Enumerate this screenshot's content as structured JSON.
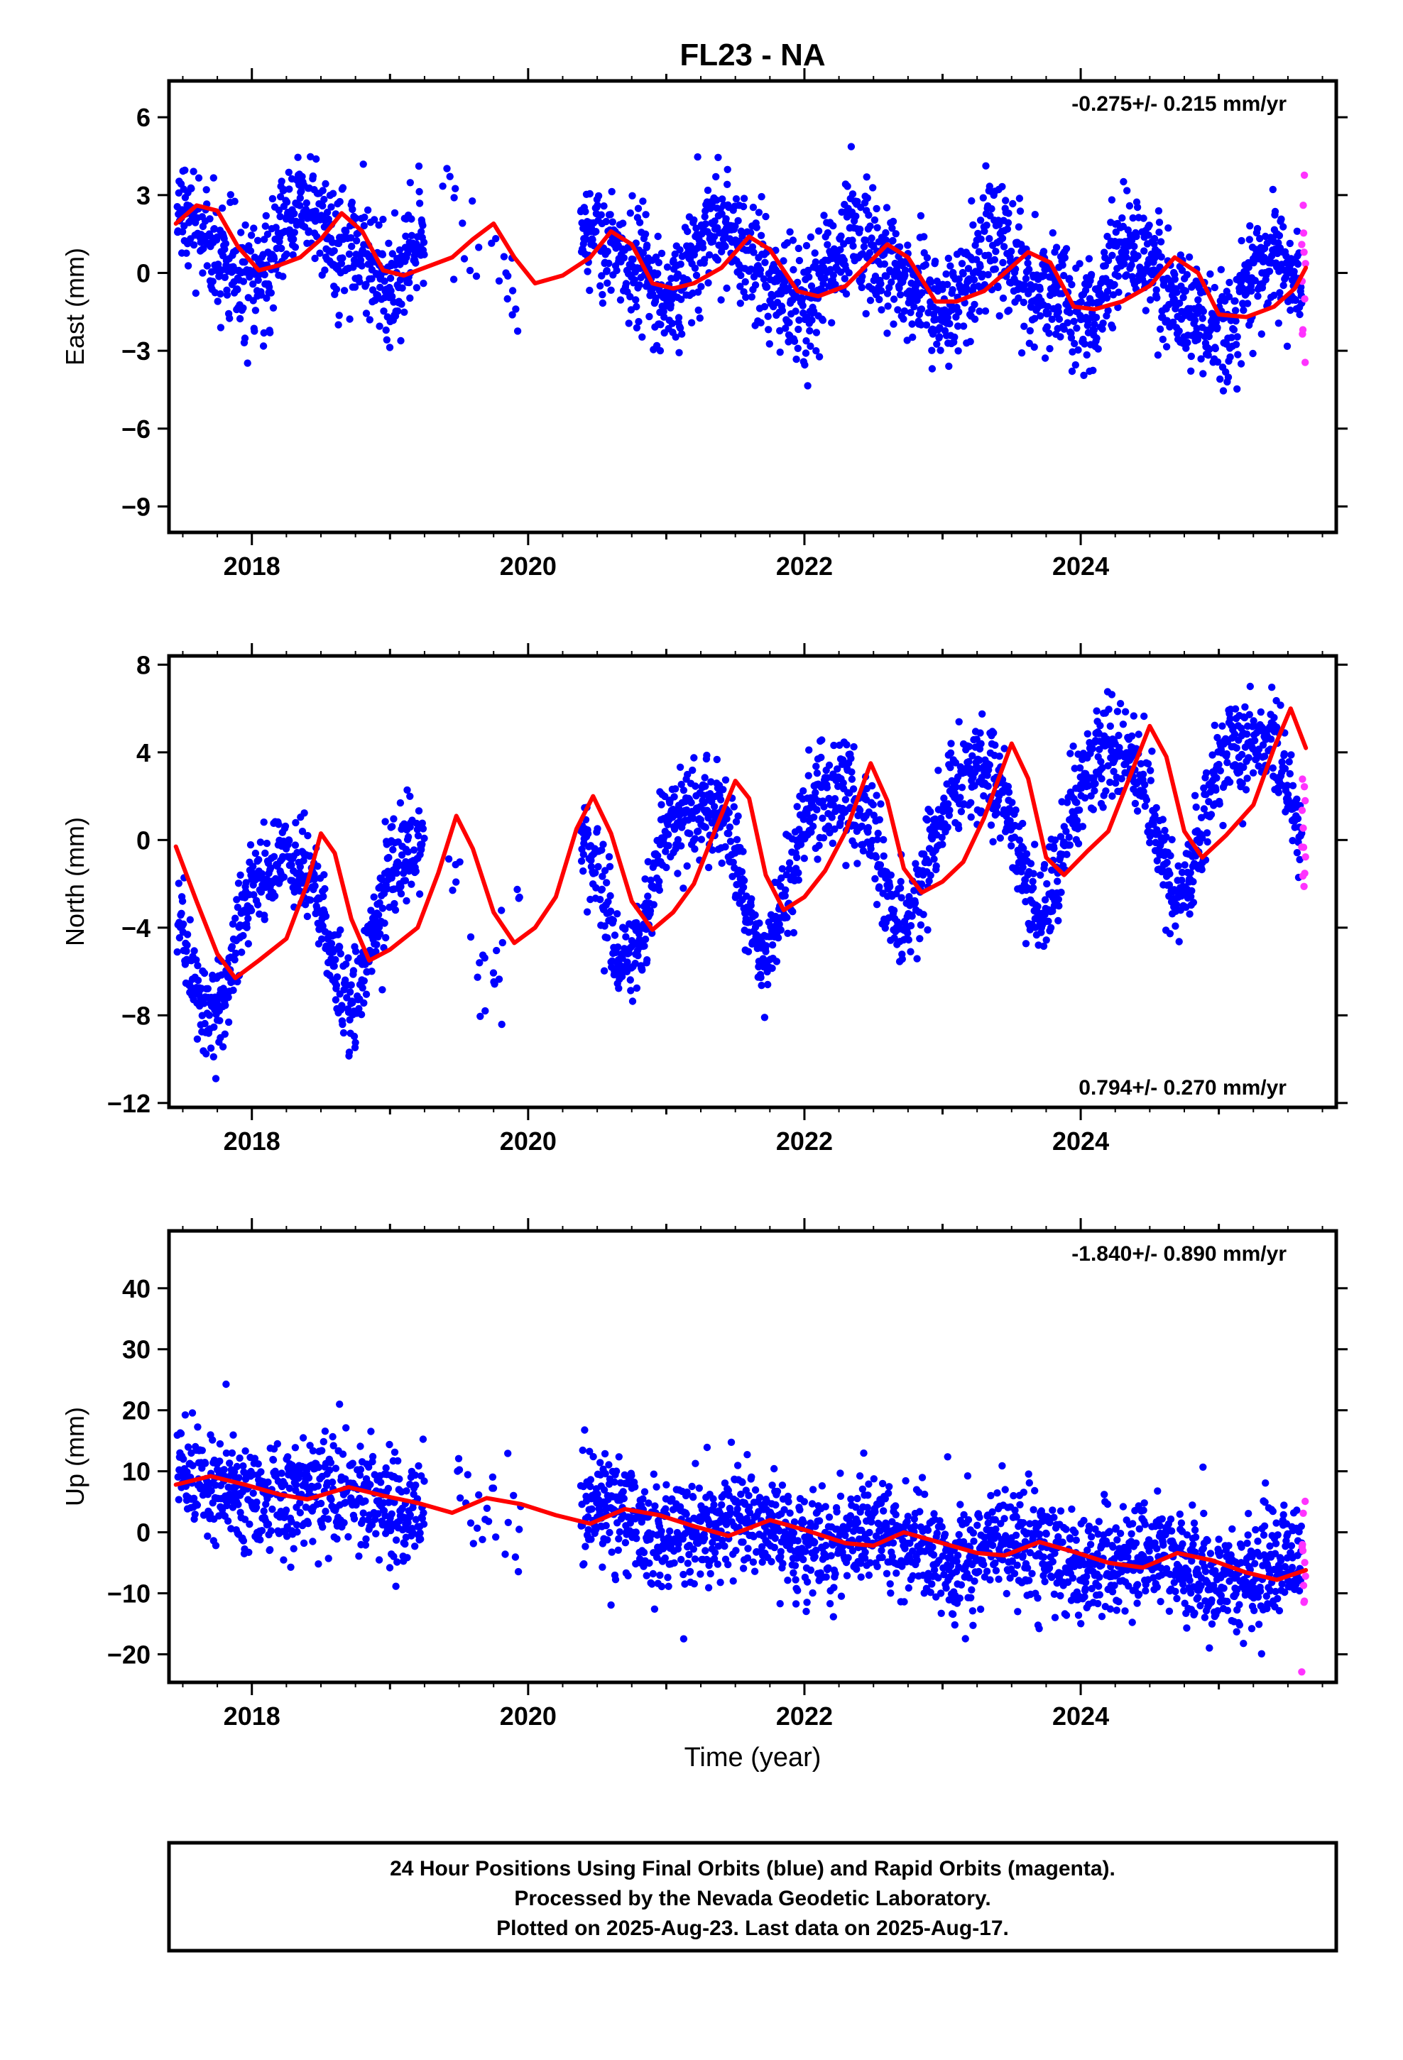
{
  "chart_data": {
    "type": "scatter",
    "title": "FL23 - NA",
    "xlabel": "Time (year)",
    "xlim": [
      2017.4,
      2025.85
    ],
    "x_ticks": [
      2018,
      2020,
      2022,
      2024
    ],
    "x_tick_labels": [
      "2018",
      "2020",
      "2022",
      "2024"
    ],
    "legend": "",
    "grid": false,
    "colors": {
      "final": "#0000ff",
      "rapid": "#ff33ff",
      "model": "#ff0000"
    },
    "footer_lines": [
      "24 Hour Positions Using Final Orbits (blue) and Rapid Orbits (magenta).",
      "Processed by the Nevada Geodetic Laboratory.",
      "Plotted on 2025-Aug-23. Last data on 2025-Aug-17."
    ],
    "panels": [
      {
        "ylabel": "East (mm)",
        "ylim": [
          -10,
          7.4
        ],
        "y_ticks": [
          6,
          3,
          0,
          -3,
          -6,
          -9
        ],
        "y_tick_labels": [
          "6",
          "3",
          "0",
          "−3",
          "−6",
          "−9"
        ],
        "rate_text": "-0.275+/- 0.215 mm/yr",
        "rate_position": "top-right",
        "trend": {
          "t0": 2021.5,
          "a": 0.3,
          "b": -0.275
        },
        "seasonal": {
          "annual_amp": 1.3,
          "annual_phase": 5.2,
          "semiannual_amp": 0.4,
          "semiannual_phase": 3.8
        },
        "scatter_sd": 1.1,
        "model_curve": [
          [
            2017.45,
            1.9
          ],
          [
            2017.6,
            2.6
          ],
          [
            2017.75,
            2.4
          ],
          [
            2017.9,
            1.0
          ],
          [
            2018.05,
            0.1
          ],
          [
            2018.2,
            0.3
          ],
          [
            2018.35,
            0.6
          ],
          [
            2018.5,
            1.3
          ],
          [
            2018.65,
            2.3
          ],
          [
            2018.8,
            1.6
          ],
          [
            2018.95,
            0.1
          ],
          [
            2019.1,
            -0.1
          ],
          [
            2019.25,
            0.2
          ],
          [
            2019.45,
            0.6
          ],
          [
            2019.6,
            1.3
          ],
          [
            2019.75,
            1.9
          ],
          [
            2019.9,
            0.6
          ],
          [
            2020.05,
            -0.4
          ],
          [
            2020.25,
            -0.1
          ],
          [
            2020.45,
            0.6
          ],
          [
            2020.6,
            1.6
          ],
          [
            2020.75,
            1.1
          ],
          [
            2020.9,
            -0.4
          ],
          [
            2021.05,
            -0.6
          ],
          [
            2021.2,
            -0.4
          ],
          [
            2021.4,
            0.2
          ],
          [
            2021.6,
            1.4
          ],
          [
            2021.75,
            0.9
          ],
          [
            2021.95,
            -0.7
          ],
          [
            2022.1,
            -0.9
          ],
          [
            2022.3,
            -0.5
          ],
          [
            2022.45,
            0.3
          ],
          [
            2022.6,
            1.1
          ],
          [
            2022.75,
            0.6
          ],
          [
            2022.95,
            -1.1
          ],
          [
            2023.1,
            -1.1
          ],
          [
            2023.3,
            -0.7
          ],
          [
            2023.45,
            0.0
          ],
          [
            2023.62,
            0.8
          ],
          [
            2023.78,
            0.4
          ],
          [
            2023.95,
            -1.3
          ],
          [
            2024.1,
            -1.4
          ],
          [
            2024.3,
            -1.1
          ],
          [
            2024.5,
            -0.5
          ],
          [
            2024.68,
            0.6
          ],
          [
            2024.85,
            0.0
          ],
          [
            2025.0,
            -1.6
          ],
          [
            2025.2,
            -1.7
          ],
          [
            2025.4,
            -1.3
          ],
          [
            2025.55,
            -0.6
          ],
          [
            2025.63,
            0.2
          ]
        ]
      },
      {
        "ylabel": "North (mm)",
        "ylim": [
          -12.2,
          8.4
        ],
        "y_ticks": [
          8,
          4,
          0,
          -4,
          -8,
          -12
        ],
        "y_tick_labels": [
          "8",
          "4",
          "0",
          "−4",
          "−8",
          "−12"
        ],
        "rate_text": "0.794+/- 0.270 mm/yr",
        "rate_position": "bottom-right",
        "trend": {
          "t0": 2021.5,
          "a": -0.9,
          "b": 0.794
        },
        "seasonal": {
          "annual_amp": 3.3,
          "annual_phase": 0.2,
          "semiannual_amp": 0.8,
          "semiannual_phase": 2.0
        },
        "scatter_sd": 1.1,
        "model_curve": [
          [
            2017.45,
            -0.3
          ],
          [
            2017.6,
            -2.8
          ],
          [
            2017.75,
            -5.2
          ],
          [
            2017.88,
            -6.3
          ],
          [
            2018.05,
            -5.5
          ],
          [
            2018.25,
            -4.5
          ],
          [
            2018.4,
            -2.0
          ],
          [
            2018.5,
            0.3
          ],
          [
            2018.6,
            -0.6
          ],
          [
            2018.72,
            -3.6
          ],
          [
            2018.85,
            -5.5
          ],
          [
            2019.0,
            -5.0
          ],
          [
            2019.2,
            -4.0
          ],
          [
            2019.35,
            -1.5
          ],
          [
            2019.48,
            1.1
          ],
          [
            2019.6,
            -0.4
          ],
          [
            2019.75,
            -3.3
          ],
          [
            2019.9,
            -4.7
          ],
          [
            2020.05,
            -4.0
          ],
          [
            2020.2,
            -2.6
          ],
          [
            2020.35,
            0.5
          ],
          [
            2020.47,
            2.0
          ],
          [
            2020.6,
            0.3
          ],
          [
            2020.75,
            -2.8
          ],
          [
            2020.9,
            -4.1
          ],
          [
            2021.05,
            -3.3
          ],
          [
            2021.2,
            -2.0
          ],
          [
            2021.35,
            0.4
          ],
          [
            2021.5,
            2.7
          ],
          [
            2021.6,
            1.9
          ],
          [
            2021.72,
            -1.6
          ],
          [
            2021.85,
            -3.2
          ],
          [
            2022.0,
            -2.6
          ],
          [
            2022.15,
            -1.4
          ],
          [
            2022.3,
            0.4
          ],
          [
            2022.48,
            3.5
          ],
          [
            2022.6,
            1.8
          ],
          [
            2022.72,
            -1.3
          ],
          [
            2022.85,
            -2.4
          ],
          [
            2023.0,
            -1.9
          ],
          [
            2023.15,
            -1.0
          ],
          [
            2023.3,
            1.0
          ],
          [
            2023.5,
            4.4
          ],
          [
            2023.62,
            2.8
          ],
          [
            2023.75,
            -0.8
          ],
          [
            2023.88,
            -1.6
          ],
          [
            2024.05,
            -0.5
          ],
          [
            2024.2,
            0.4
          ],
          [
            2024.35,
            2.8
          ],
          [
            2024.5,
            5.2
          ],
          [
            2024.62,
            3.8
          ],
          [
            2024.75,
            0.4
          ],
          [
            2024.88,
            -0.8
          ],
          [
            2025.05,
            0.2
          ],
          [
            2025.25,
            1.6
          ],
          [
            2025.4,
            4.2
          ],
          [
            2025.52,
            6.0
          ],
          [
            2025.63,
            4.2
          ]
        ]
      },
      {
        "ylabel": "Up (mm)",
        "ylim": [
          -24.6,
          49.4
        ],
        "y_ticks": [
          40,
          30,
          20,
          10,
          0,
          -10,
          -20
        ],
        "y_tick_labels": [
          "40",
          "30",
          "20",
          "10",
          "0",
          "−10",
          "−20"
        ],
        "rate_text": "-1.840+/- 0.890 mm/yr",
        "rate_position": "top-right",
        "trend": {
          "t0": 2021.5,
          "a": 0.5,
          "b": -1.84
        },
        "seasonal": {
          "annual_amp": 2.0,
          "annual_phase": 4.5,
          "semiannual_amp": 0.0,
          "semiannual_phase": 0.0
        },
        "scatter_sd": 4.6,
        "model_curve": [
          [
            2017.45,
            7.8
          ],
          [
            2017.7,
            9.2
          ],
          [
            2017.95,
            7.8
          ],
          [
            2018.2,
            6.2
          ],
          [
            2018.4,
            5.4
          ],
          [
            2018.7,
            7.4
          ],
          [
            2018.95,
            6.0
          ],
          [
            2019.2,
            4.8
          ],
          [
            2019.45,
            3.2
          ],
          [
            2019.7,
            5.6
          ],
          [
            2019.95,
            4.6
          ],
          [
            2020.2,
            2.8
          ],
          [
            2020.45,
            1.4
          ],
          [
            2020.7,
            3.8
          ],
          [
            2020.95,
            2.8
          ],
          [
            2021.2,
            1.0
          ],
          [
            2021.45,
            -0.6
          ],
          [
            2021.75,
            2.0
          ],
          [
            2022.0,
            0.4
          ],
          [
            2022.3,
            -1.8
          ],
          [
            2022.5,
            -2.2
          ],
          [
            2022.72,
            0.0
          ],
          [
            2023.0,
            -1.8
          ],
          [
            2023.25,
            -3.4
          ],
          [
            2023.45,
            -3.8
          ],
          [
            2023.7,
            -1.6
          ],
          [
            2023.95,
            -3.2
          ],
          [
            2024.2,
            -5.0
          ],
          [
            2024.45,
            -5.8
          ],
          [
            2024.7,
            -3.4
          ],
          [
            2024.95,
            -4.6
          ],
          [
            2025.2,
            -6.6
          ],
          [
            2025.42,
            -7.8
          ],
          [
            2025.63,
            -6.2
          ]
        ]
      }
    ]
  }
}
